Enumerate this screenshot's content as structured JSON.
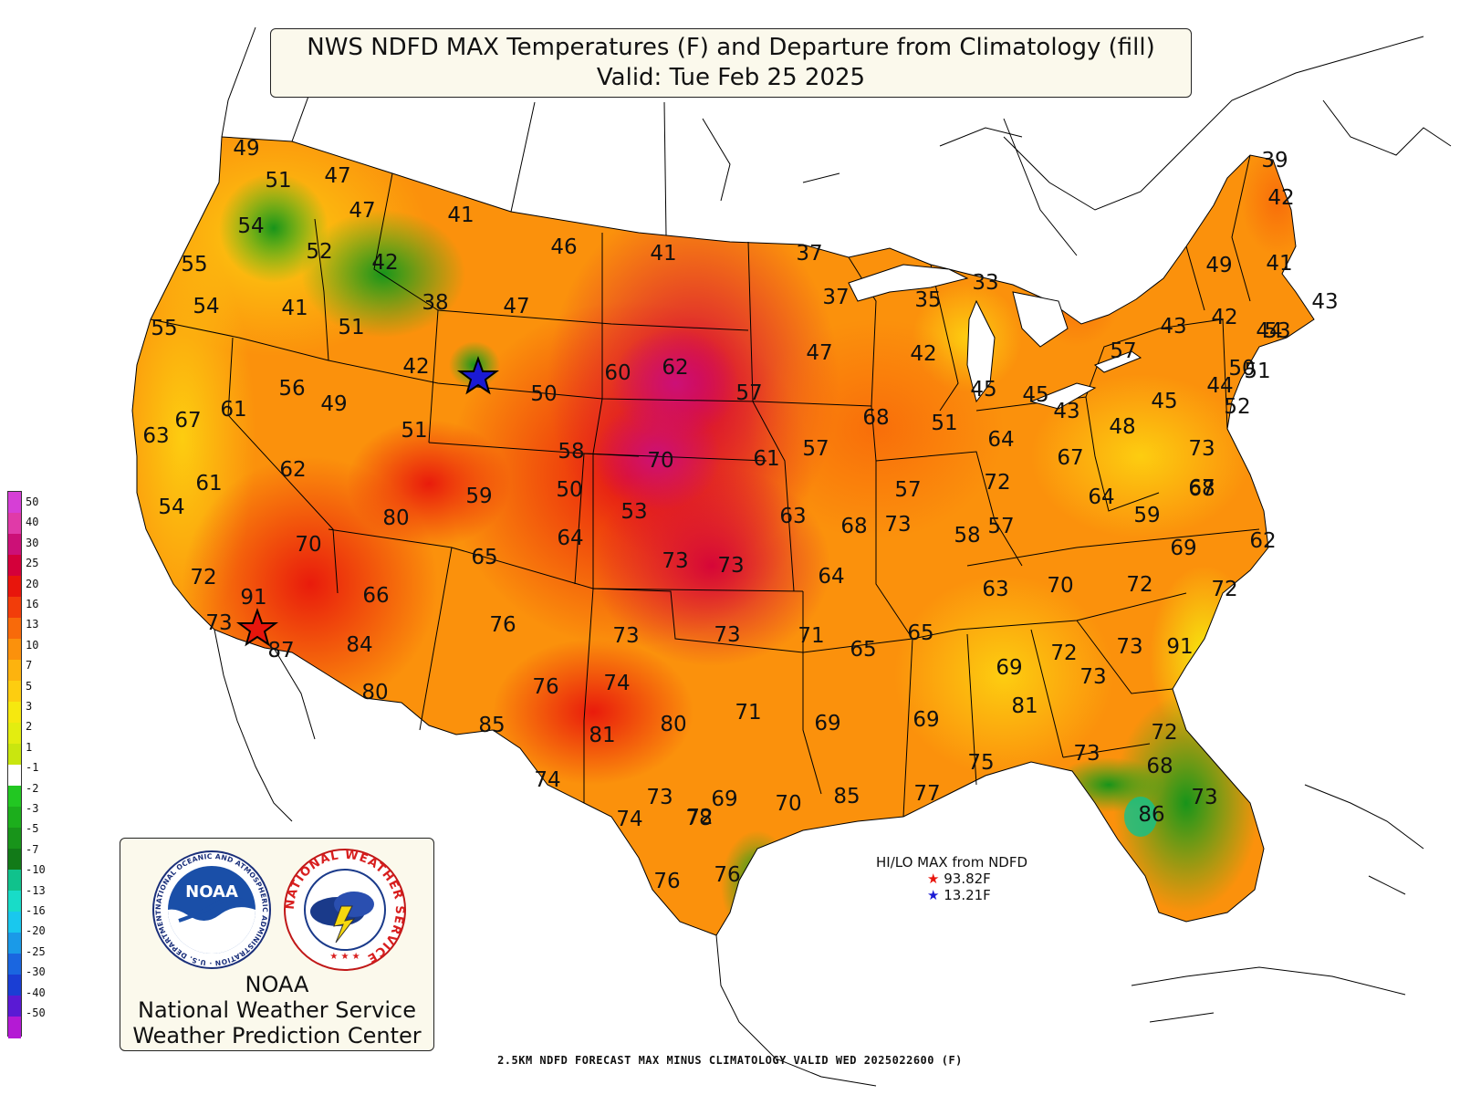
{
  "title": {
    "line1": "NWS NDFD MAX Temperatures (F) and Departure from Climatology (fill)",
    "line2": "Valid: Tue Feb 25 2025"
  },
  "legend": {
    "labels": [
      "50",
      "40",
      "30",
      "25",
      "20",
      "16",
      "13",
      "10",
      "7",
      "5",
      "3",
      "2",
      "1",
      "-1",
      "-2",
      "-3",
      "-5",
      "-7",
      "-10",
      "-13",
      "-16",
      "-20",
      "-25",
      "-30",
      "-40",
      "-50"
    ],
    "colors": [
      "#d63fd6",
      "#e03aa8",
      "#cc1077",
      "#d4003a",
      "#e8150c",
      "#f23d0a",
      "#f86a0a",
      "#fb910c",
      "#fdb30e",
      "#fdcd10",
      "#f6e80f",
      "#e3ed10",
      "#c9e60f",
      "#ffffff",
      "#22c722",
      "#1cae1c",
      "#18941a",
      "#127a18",
      "#10c28c",
      "#18dcc8",
      "#19c8ee",
      "#1a9ae8",
      "#1a66e0",
      "#1a3ed4",
      "#5a1ad4",
      "#b41ad4"
    ]
  },
  "hilo": {
    "title": "HI/LO MAX from NDFD",
    "hi": "93.82F",
    "lo": "13.21F"
  },
  "logo": {
    "noaa_badge": "NOAA",
    "noaa_ring": "NATIONAL OCEANIC AND ATMOSPHERIC ADMINISTRATION · U.S. DEPARTMENT OF COMMERCE",
    "nws_ring": "NATIONAL WEATHER SERVICE",
    "line1": "NOAA",
    "line2": "National Weather Service",
    "line3": "Weather Prediction Center"
  },
  "footer": "2.5KM NDFD FORECAST MAX MINUS CLIMATOLOGY VALID WED 2025022600 (F)",
  "temperatures": [
    "49",
    "51",
    "47",
    "47",
    "41",
    "54",
    "52",
    "42",
    "46",
    "41",
    "37",
    "39",
    "42",
    "55",
    "54",
    "41",
    "38",
    "47",
    "49",
    "41",
    "37",
    "33",
    "35",
    "43",
    "44",
    "55",
    "51",
    "42",
    "60",
    "62",
    "57",
    "47",
    "42",
    "43",
    "42",
    "53",
    "51",
    "56",
    "49",
    "61",
    "67",
    "63",
    "51",
    "50",
    "57",
    "50",
    "51",
    "45",
    "45",
    "43",
    "48",
    "45",
    "44",
    "52",
    "58",
    "70",
    "61",
    "57",
    "68",
    "64",
    "73",
    "68",
    "67",
    "57",
    "72",
    "64",
    "61",
    "59",
    "50",
    "53",
    "54",
    "63",
    "68",
    "73",
    "57",
    "58",
    "59",
    "62",
    "62",
    "80",
    "67",
    "64",
    "73",
    "73",
    "70",
    "65",
    "64",
    "63",
    "70",
    "72",
    "69",
    "72",
    "91",
    "73",
    "66",
    "72",
    "76",
    "73",
    "73",
    "71",
    "65",
    "65",
    "69",
    "72",
    "73",
    "73",
    "91",
    "87",
    "84",
    "80",
    "76",
    "74",
    "71",
    "69",
    "69",
    "81",
    "80",
    "85",
    "81",
    "74",
    "73",
    "72",
    "68",
    "75",
    "73",
    "69",
    "70",
    "73",
    "72",
    "85",
    "77",
    "86",
    "74",
    "78",
    "76",
    "76"
  ],
  "colors": {
    "land_default": "#fb910c",
    "ocean": "#ffffff",
    "border": "#000000"
  }
}
